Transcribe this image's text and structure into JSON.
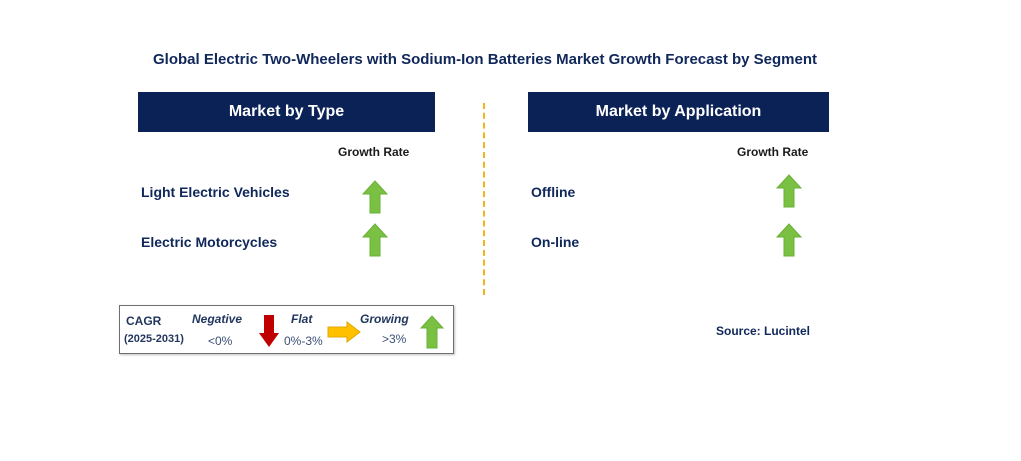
{
  "title": "Global Electric Two-Wheelers with Sodium-Ion Batteries Market Growth Forecast by Segment",
  "left_panel": {
    "header": "Market by Type",
    "column_header": "Growth Rate",
    "rows": [
      {
        "label": "Light Electric Vehicles",
        "trend": "growing"
      },
      {
        "label": "Electric Motorcycles",
        "trend": "growing"
      }
    ]
  },
  "right_panel": {
    "header": "Market by Application",
    "column_header": "Growth Rate",
    "rows": [
      {
        "label": "Offline",
        "trend": "growing"
      },
      {
        "label": "On-line",
        "trend": "growing"
      }
    ]
  },
  "legend": {
    "cagr_label": "CAGR",
    "period": "(2025-2031)",
    "negative": {
      "label": "Negative",
      "range": "<0%",
      "icon": "down-arrow-icon",
      "color": "#c00000"
    },
    "flat": {
      "label": "Flat",
      "range": "0%-3%",
      "icon": "right-arrow-icon",
      "color": "#ffc000"
    },
    "growing": {
      "label": "Growing",
      "range": ">3%",
      "icon": "up-arrow-icon",
      "color": "#7ac143"
    }
  },
  "source": "Source: Lucintel",
  "colors": {
    "header_bg": "#0b2257",
    "divider": "#f5b21a",
    "up_arrow": "#7ac143"
  }
}
